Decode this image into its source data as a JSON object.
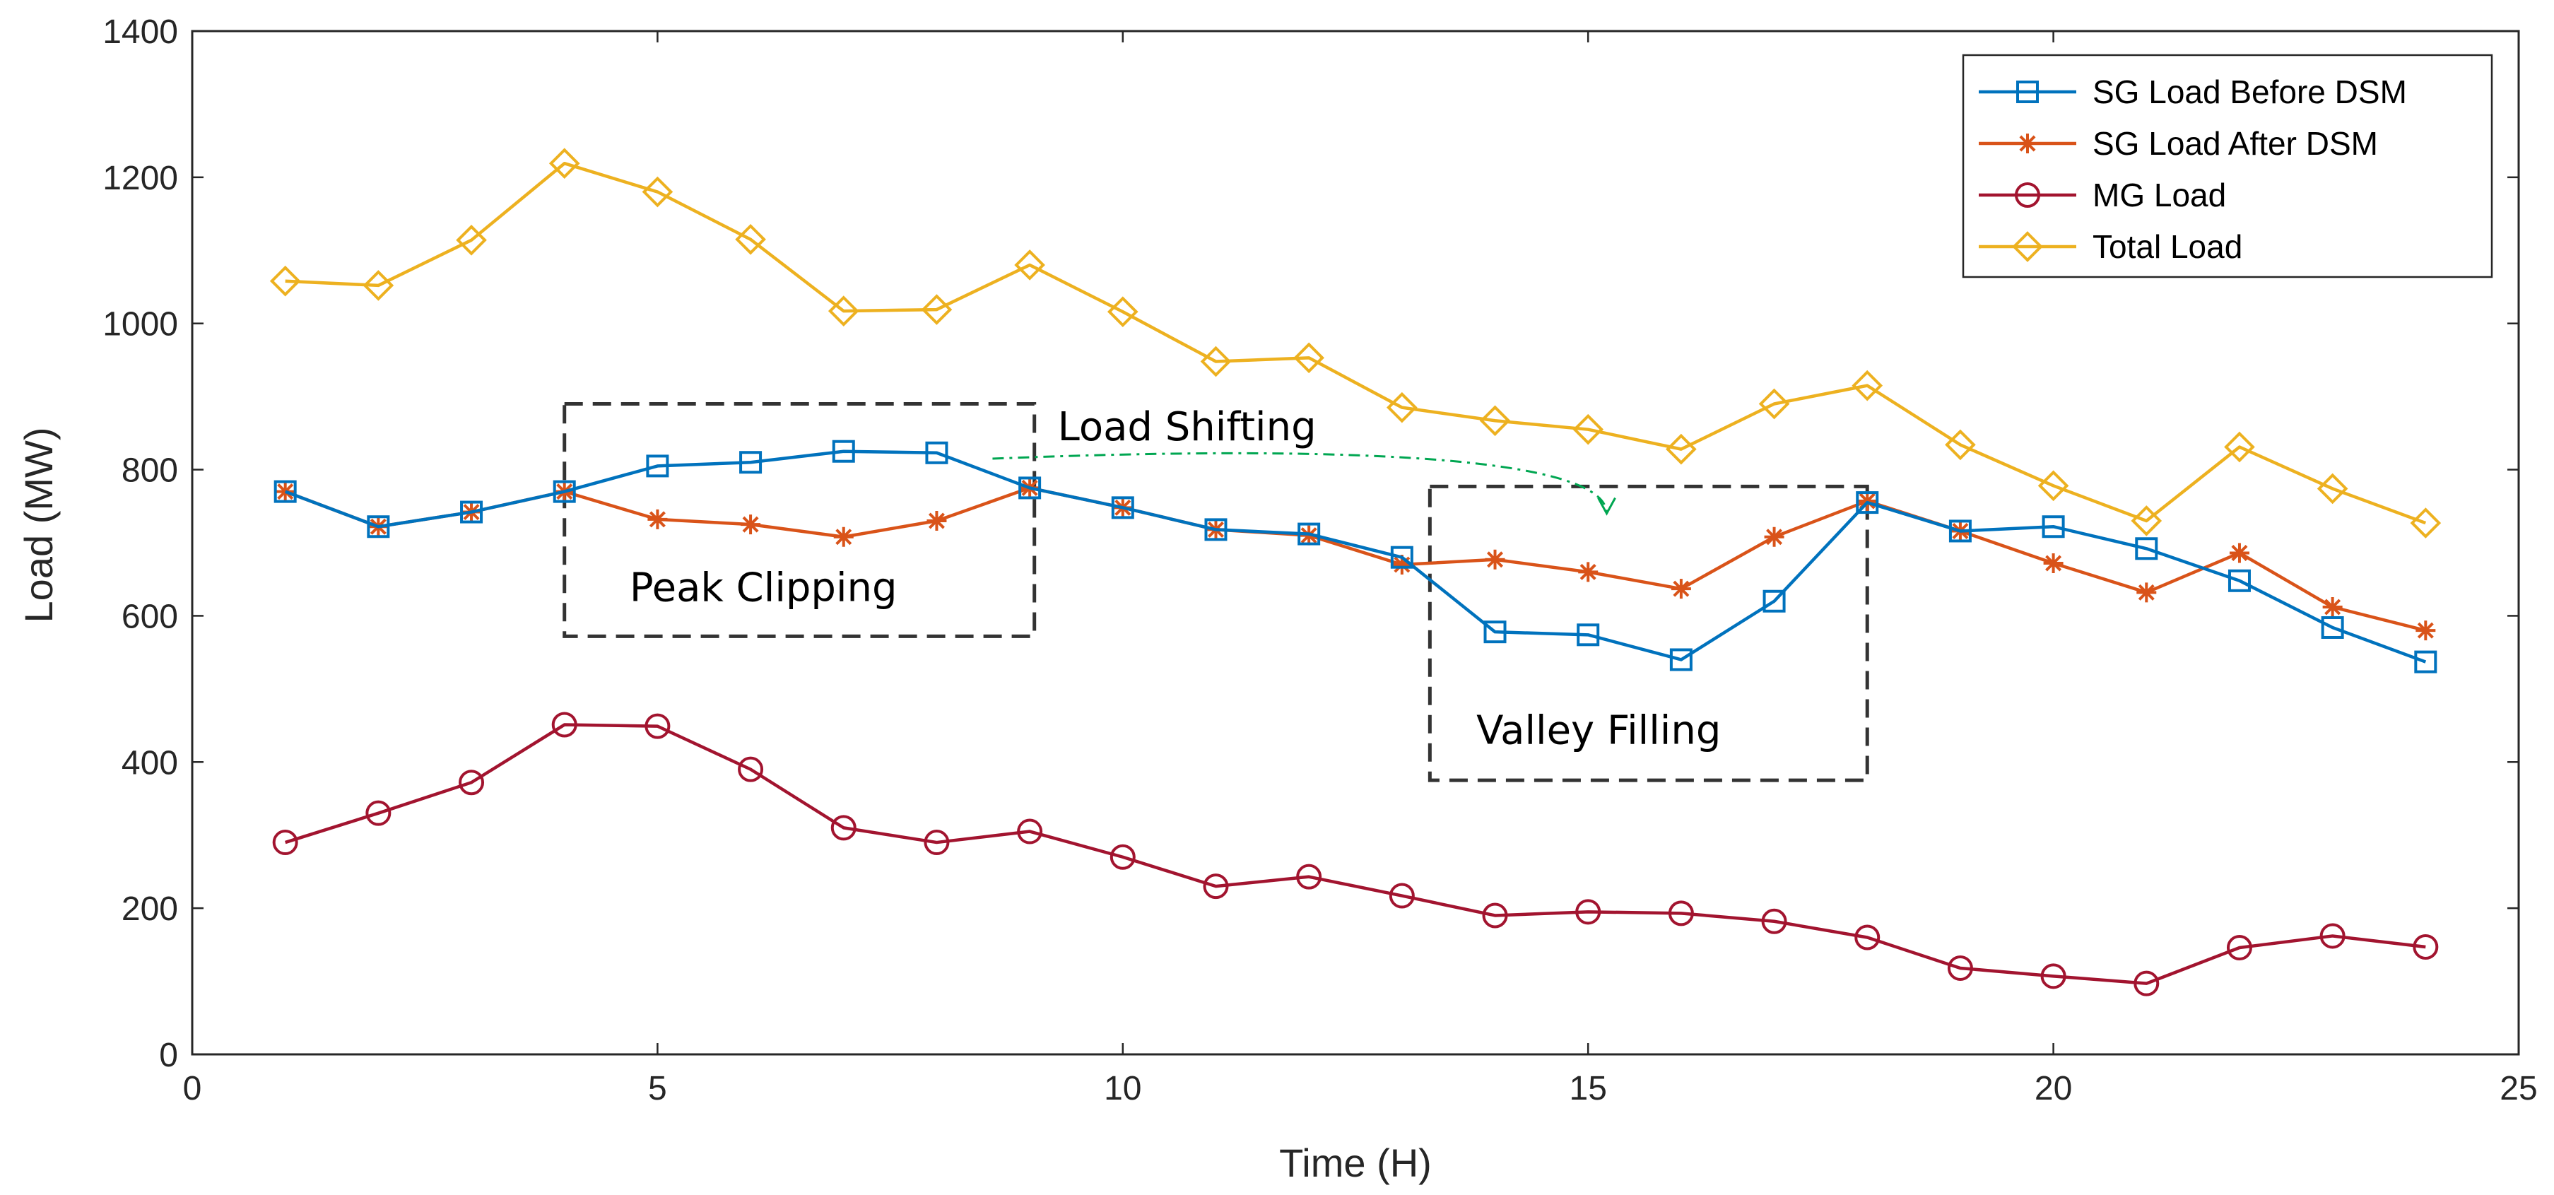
{
  "chart_data": {
    "type": "line",
    "title": "",
    "xlabel": "Time (H)",
    "ylabel": "Load (MW)",
    "xlim": [
      0,
      25
    ],
    "ylim": [
      0,
      1400
    ],
    "xticks": [
      0,
      5,
      10,
      15,
      20,
      25
    ],
    "yticks": [
      0,
      200,
      400,
      600,
      800,
      1000,
      1200,
      1400
    ],
    "grid": false,
    "legend_position": "top-right",
    "x": [
      1,
      2,
      3,
      4,
      5,
      6,
      7,
      8,
      9,
      10,
      11,
      12,
      13,
      14,
      15,
      16,
      17,
      18,
      19,
      20,
      21,
      22,
      23,
      24
    ],
    "series": [
      {
        "name": "SG Load Before DSM",
        "color": "#0072BD",
        "marker": "square",
        "values": [
          770,
          722,
          742,
          770,
          805,
          810,
          825,
          823,
          775,
          748,
          718,
          712,
          680,
          578,
          574,
          540,
          620,
          755,
          716,
          722,
          692,
          648,
          584,
          537
        ]
      },
      {
        "name": "SG Load After DSM",
        "color": "#D95319",
        "marker": "asterisk",
        "values": [
          770,
          722,
          742,
          770,
          732,
          725,
          708,
          730,
          775,
          748,
          718,
          710,
          670,
          677,
          660,
          637,
          708,
          757,
          716,
          672,
          632,
          686,
          612,
          580
        ]
      },
      {
        "name": "MG Load",
        "color": "#A2142F",
        "marker": "circle",
        "values": [
          290,
          330,
          372,
          451,
          449,
          390,
          310,
          290,
          305,
          270,
          230,
          243,
          217,
          190,
          195,
          193,
          182,
          160,
          118,
          107,
          97,
          146,
          162,
          147
        ]
      },
      {
        "name": "Total Load",
        "color": "#EDB120",
        "marker": "diamond",
        "values": [
          1058,
          1052,
          1114,
          1219,
          1180,
          1115,
          1017,
          1019,
          1080,
          1016,
          948,
          953,
          885,
          867,
          855,
          828,
          890,
          915,
          834,
          778,
          730,
          831,
          774,
          727
        ]
      }
    ],
    "annotations": [
      {
        "text": "Load Shifting",
        "kind": "curved-arrow"
      },
      {
        "text": "Peak Clipping",
        "kind": "dashed-box"
      },
      {
        "text": "Valley Filling",
        "kind": "dashed-box"
      }
    ]
  }
}
